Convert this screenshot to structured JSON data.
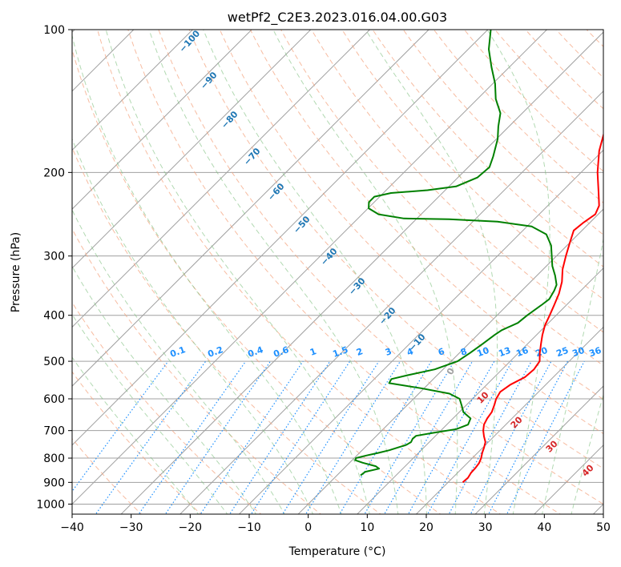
{
  "chart_data": {
    "type": "skew-t",
    "title": "wetPf2_C2E3.2023.016.04.00.G03",
    "xlabel": "Temperature (°C)",
    "ylabel": "Pressure (hPa)",
    "xlim": [
      -40,
      50
    ],
    "ylim": [
      1050,
      100
    ],
    "y_scale": "log",
    "grid": true,
    "x_ticks": [
      "−40",
      "−30",
      "−20",
      "−10",
      "0",
      "10",
      "20",
      "30",
      "40",
      "50"
    ],
    "y_ticks": [
      "100",
      "200",
      "300",
      "400",
      "500",
      "600",
      "700",
      "800",
      "900",
      "1000"
    ],
    "series": [
      {
        "color": "#ff0000",
        "points": [
          [
            900,
            22.5
          ],
          [
            880,
            22.6
          ],
          [
            860,
            22.3
          ],
          [
            840,
            22.2
          ],
          [
            820,
            22.0
          ],
          [
            800,
            21.5
          ],
          [
            780,
            20.8
          ],
          [
            760,
            20.2
          ],
          [
            740,
            19.5
          ],
          [
            720,
            18.3
          ],
          [
            700,
            17.2
          ],
          [
            680,
            16.3
          ],
          [
            660,
            15.8
          ],
          [
            640,
            15.5
          ],
          [
            620,
            14.8
          ],
          [
            600,
            14.0
          ],
          [
            580,
            13.5
          ],
          [
            560,
            14.0
          ],
          [
            540,
            15.2
          ],
          [
            520,
            15.4
          ],
          [
            500,
            15.0
          ],
          [
            480,
            13.6
          ],
          [
            460,
            12.3
          ],
          [
            440,
            11.0
          ],
          [
            420,
            9.8
          ],
          [
            400,
            8.9
          ],
          [
            380,
            7.9
          ],
          [
            360,
            6.8
          ],
          [
            340,
            5.3
          ],
          [
            320,
            3.3
          ],
          [
            300,
            1.6
          ],
          [
            280,
            -0.1
          ],
          [
            265,
            -1.4
          ],
          [
            255,
            -1.1
          ],
          [
            245,
            -0.5
          ],
          [
            235,
            -1.3
          ],
          [
            220,
            -3.7
          ],
          [
            200,
            -7.2
          ],
          [
            180,
            -10.6
          ],
          [
            160,
            -13.6
          ],
          [
            145,
            -15.8
          ],
          [
            130,
            -17.8
          ],
          [
            120,
            -19.7
          ],
          [
            112,
            -21.8
          ],
          [
            105,
            -23.4
          ],
          [
            100,
            -24.4
          ]
        ]
      },
      {
        "color": "#008000",
        "points": [
          [
            870,
            4.0
          ],
          [
            855,
            4.2
          ],
          [
            842,
            6.0
          ],
          [
            832,
            5.0
          ],
          [
            818,
            2.2
          ],
          [
            808,
            0.5
          ],
          [
            800,
            0.3
          ],
          [
            790,
            1.6
          ],
          [
            780,
            3.2
          ],
          [
            770,
            4.6
          ],
          [
            760,
            5.6
          ],
          [
            750,
            6.6
          ],
          [
            740,
            6.9
          ],
          [
            728,
            6.6
          ],
          [
            718,
            6.7
          ],
          [
            708,
            9.0
          ],
          [
            695,
            12.4
          ],
          [
            680,
            13.6
          ],
          [
            660,
            13.0
          ],
          [
            640,
            10.7
          ],
          [
            620,
            9.3
          ],
          [
            600,
            7.8
          ],
          [
            585,
            5.2
          ],
          [
            570,
            -0.5
          ],
          [
            556,
            -6.8
          ],
          [
            545,
            -7.1
          ],
          [
            535,
            -5.0
          ],
          [
            520,
            -1.4
          ],
          [
            500,
            1.1
          ],
          [
            480,
            1.8
          ],
          [
            460,
            2.4
          ],
          [
            440,
            2.9
          ],
          [
            430,
            3.3
          ],
          [
            415,
            4.8
          ],
          [
            400,
            5.1
          ],
          [
            380,
            5.8
          ],
          [
            370,
            6.1
          ],
          [
            355,
            5.5
          ],
          [
            345,
            4.9
          ],
          [
            330,
            3.1
          ],
          [
            315,
            1.0
          ],
          [
            300,
            -0.8
          ],
          [
            285,
            -2.7
          ],
          [
            270,
            -5.4
          ],
          [
            260,
            -9.2
          ],
          [
            254,
            -15.8
          ],
          [
            251,
            -24.4
          ],
          [
            250,
            -32.2
          ],
          [
            245,
            -37.2
          ],
          [
            238,
            -39.9
          ],
          [
            231,
            -40.9
          ],
          [
            225,
            -40.9
          ],
          [
            221,
            -38.7
          ],
          [
            218,
            -33.0
          ],
          [
            214,
            -28.8
          ],
          [
            205,
            -26.7
          ],
          [
            195,
            -26.4
          ],
          [
            185,
            -27.6
          ],
          [
            170,
            -29.8
          ],
          [
            160,
            -31.8
          ],
          [
            150,
            -33.7
          ],
          [
            140,
            -36.9
          ],
          [
            130,
            -39.6
          ],
          [
            120,
            -43.0
          ],
          [
            110,
            -46.5
          ],
          [
            100,
            -49.5
          ]
        ]
      }
    ],
    "dry_adiabat_labels": [
      "−100",
      "−90",
      "−80",
      "−70",
      "−60",
      "−50",
      "−40",
      "−30",
      "−20",
      "−10"
    ],
    "mixing_ratio_labels": [
      "0.1",
      "0.2",
      "0.4",
      "0.6",
      "1",
      "1.5",
      "2",
      "3",
      "4",
      "6",
      "8",
      "10",
      "13",
      "16",
      "20",
      "25",
      "30",
      "36"
    ],
    "moist_adiabat_labels": [
      "0",
      "10",
      "20",
      "30",
      "40"
    ],
    "colors": {
      "temperature": "#ff0000",
      "dewpoint": "#008000",
      "dry_adiabat": "#f4a582",
      "moist_adiabat": "#7fbf7f",
      "mixing_ratio": "#1e90ff",
      "isotherm": "#a0a0a0",
      "dry_label": "#1f77b4",
      "moist_label": "#d62728"
    }
  }
}
